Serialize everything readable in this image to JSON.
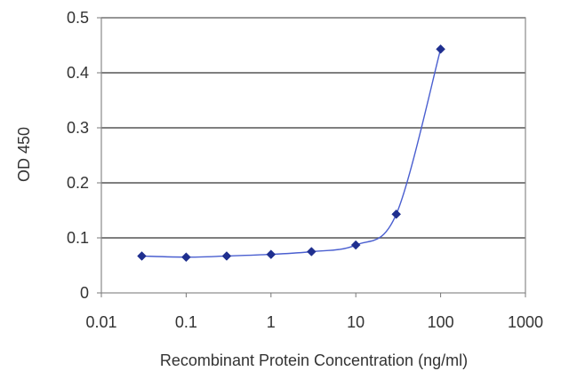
{
  "chart_data": {
    "type": "scatter",
    "title": "",
    "xlabel": "Recombinant Protein Concentration (ng/ml)",
    "ylabel": "OD 450",
    "x_scale": "log",
    "xlim": [
      0.01,
      1000
    ],
    "ylim": [
      0,
      0.5
    ],
    "x_ticks": [
      0.01,
      0.1,
      1,
      10,
      100,
      1000
    ],
    "x_tick_labels": [
      "0.01",
      "0.1",
      "1",
      "10",
      "100",
      "1000"
    ],
    "y_ticks": [
      0,
      0.1,
      0.2,
      0.3,
      0.4,
      0.5
    ],
    "y_tick_labels": [
      "0",
      "0.1",
      "0.2",
      "0.3",
      "0.4",
      "0.5"
    ],
    "grid": "horizontal",
    "legend": "none",
    "series": [
      {
        "marker": "diamond",
        "line": "fitted curve",
        "color": "#1f2f8f",
        "x": [
          0.03,
          0.1,
          0.3,
          1,
          3,
          10,
          30,
          100
        ],
        "y": [
          0.067,
          0.065,
          0.067,
          0.07,
          0.075,
          0.087,
          0.143,
          0.443
        ]
      }
    ]
  }
}
